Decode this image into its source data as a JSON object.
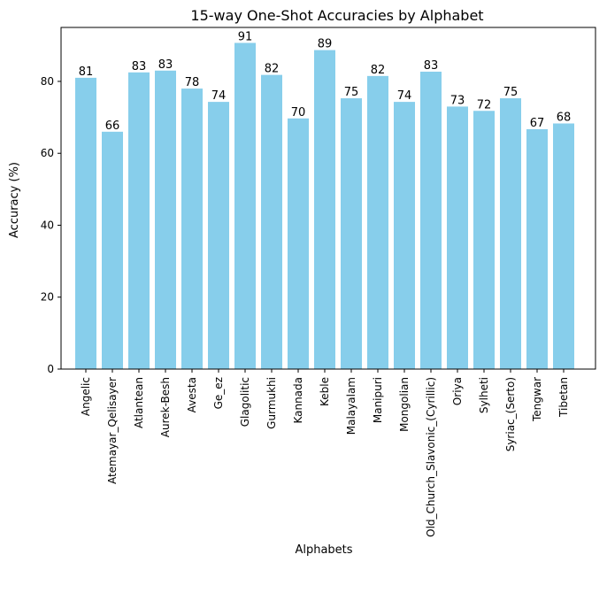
{
  "chart_data": {
    "type": "bar",
    "title": "15-way One-Shot Accuracies by Alphabet",
    "xlabel": "Alphabets",
    "ylabel": "Accuracy (%)",
    "ylim": [
      0,
      95
    ],
    "yticks": [
      0,
      20,
      40,
      60,
      80
    ],
    "grid": false,
    "bar_color": "#87CEEB",
    "categories": [
      "Angelic",
      "Atemayar_Qelisayer",
      "Atlantean",
      "Aurek-Besh",
      "Avesta",
      "Ge_ez",
      "Glagolitic",
      "Gurmukhi",
      "Kannada",
      "Keble",
      "Malayalam",
      "Manipuri",
      "Mongolian",
      "Old_Church_Slavonic_(Cyrillic)",
      "Oriya",
      "Sylheti",
      "Syriac_(Serto)",
      "Tengwar",
      "Tibetan"
    ],
    "values": [
      81,
      66,
      82.5,
      83,
      78,
      74.3,
      90.7,
      81.8,
      69.7,
      88.7,
      75.3,
      81.5,
      74.3,
      82.7,
      73,
      71.8,
      75.3,
      66.7,
      68.3
    ],
    "data_labels": [
      "81",
      "66",
      "83",
      "83",
      "78",
      "74",
      "91",
      "82",
      "70",
      "89",
      "75",
      "82",
      "74",
      "83",
      "73",
      "72",
      "75",
      "67",
      "68"
    ]
  }
}
